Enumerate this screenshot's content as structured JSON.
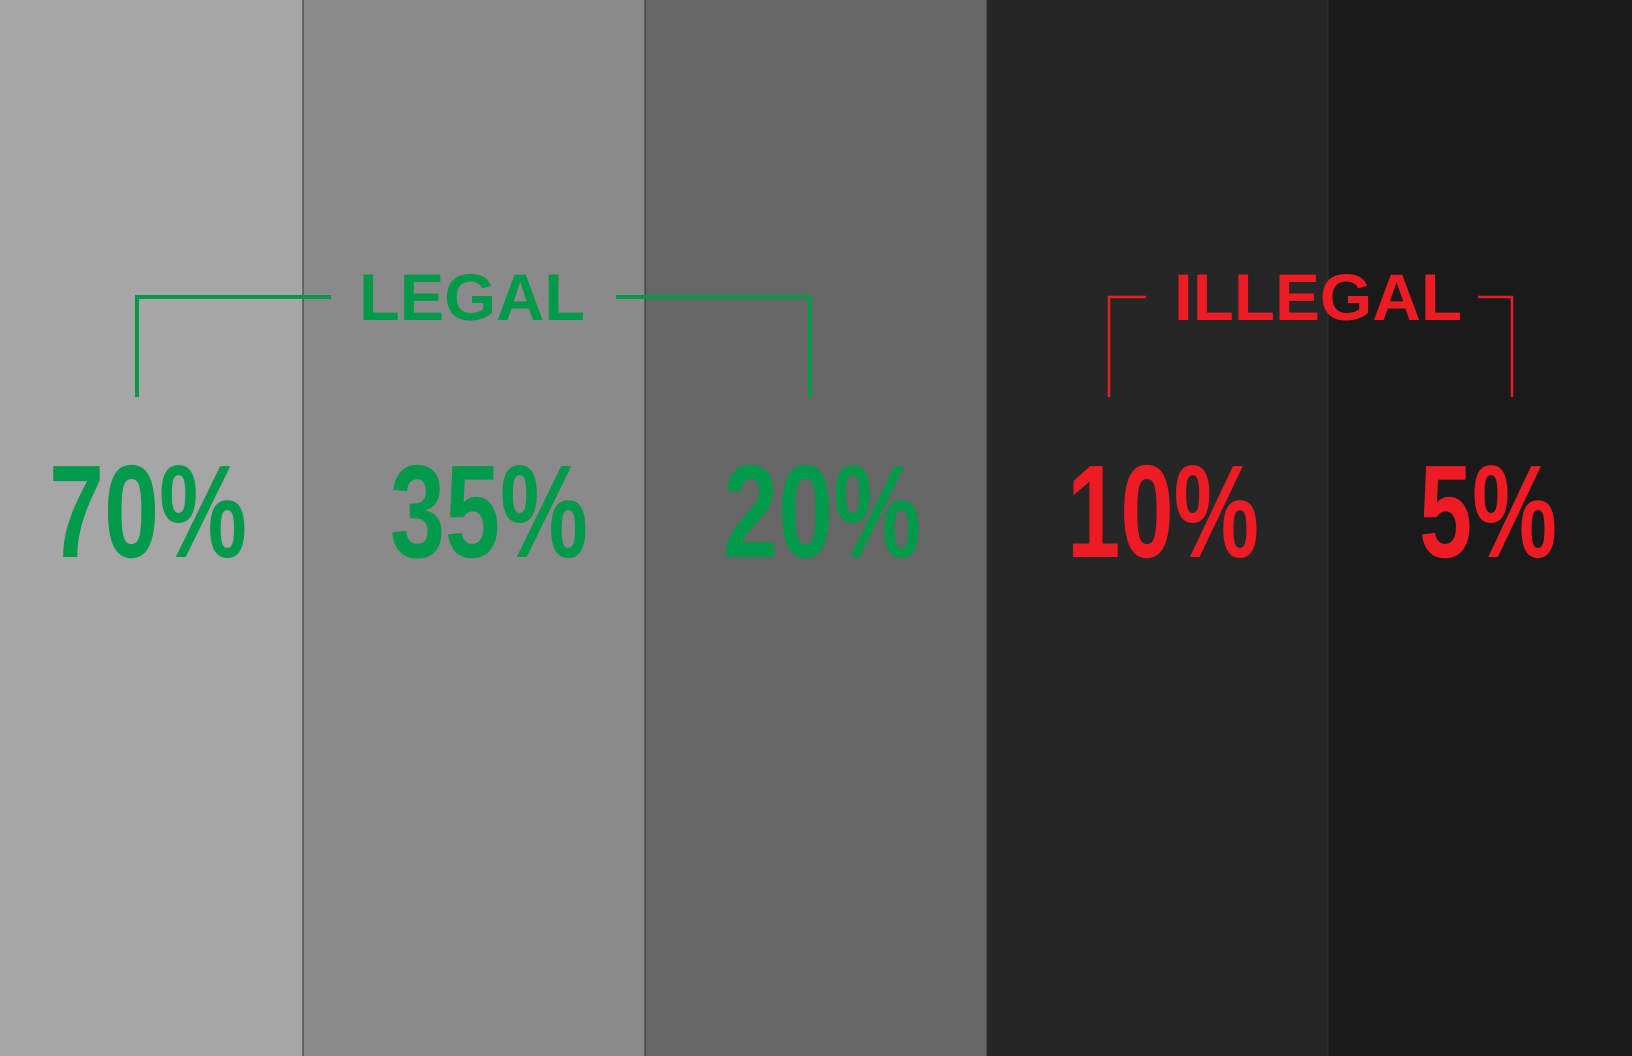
{
  "groups": [
    {
      "label": "LEGAL",
      "color": "#009a4a"
    },
    {
      "label": "ILLEGAL",
      "color": "#ed1c24"
    }
  ],
  "columns": [
    {
      "label": "70%",
      "background": "#a6a6a6",
      "group": 0
    },
    {
      "label": "35%",
      "background": "#8a8a8a",
      "group": 0
    },
    {
      "label": "20%",
      "background": "#666666",
      "group": 0
    },
    {
      "label": "10%",
      "background": "#262626",
      "group": 1
    },
    {
      "label": "5%",
      "background": "#1a1a1a",
      "group": 1
    }
  ]
}
